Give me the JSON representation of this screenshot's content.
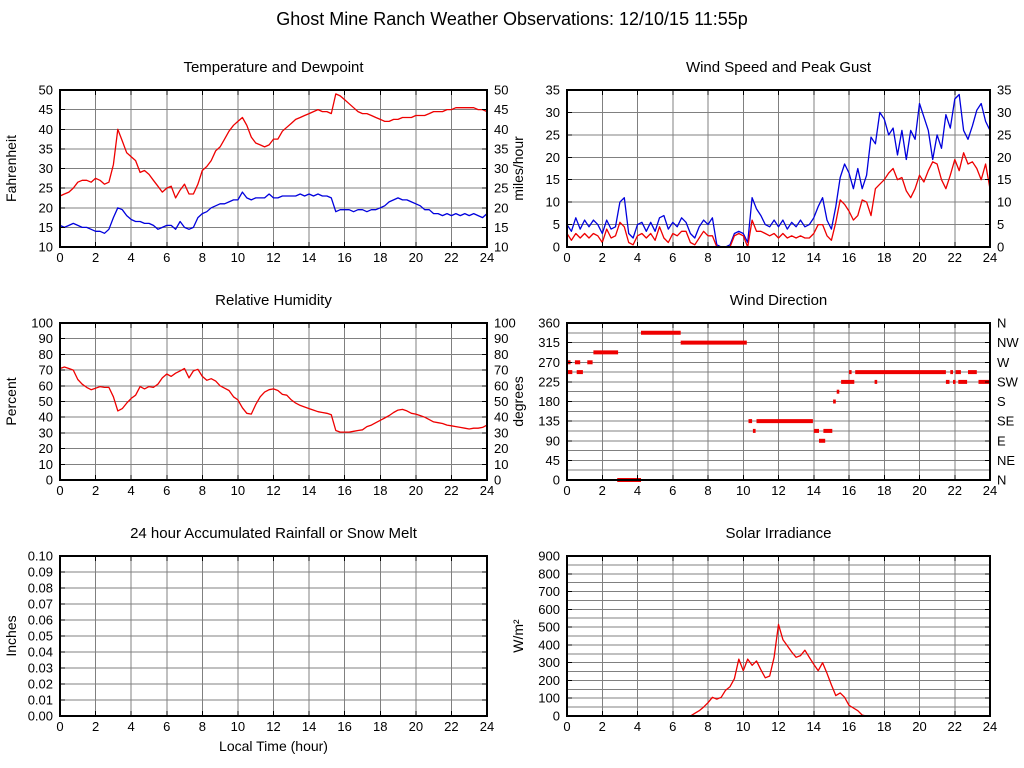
{
  "header": {
    "title": "Ghost Mine Ranch Weather Observations: 12/10/15 11:55p"
  },
  "colors": {
    "series_red": "#ee0000",
    "series_blue": "#0000dd",
    "grid": "#808080",
    "frame": "#000000",
    "text": "#000000",
    "background": "#ffffff"
  },
  "chart_data": [
    {
      "id": "temperature-dewpoint",
      "type": "line",
      "title": "Temperature and Dewpoint",
      "ylabel": "Fahrenheit",
      "xlabel": "",
      "x_range": [
        0,
        24
      ],
      "x_label_step": 2,
      "y_range": [
        10,
        50
      ],
      "y_label_step": 5,
      "y_grid_step": 5,
      "y_tick_decimals": 0,
      "right_labels": "mirror",
      "grid": true,
      "legend": "none",
      "series": [
        {
          "name": "temperature",
          "color_key": "series_red",
          "x_start": 0,
          "x_step": 0.25,
          "values": [
            23,
            23.5,
            24,
            25,
            26.5,
            27,
            27,
            26.5,
            27.5,
            27,
            26,
            26.5,
            31,
            40,
            37,
            34,
            33,
            32,
            29,
            29.5,
            28.5,
            27,
            25.5,
            24,
            25,
            25.5,
            22.5,
            24.5,
            26,
            23.5,
            23.5,
            26,
            29.5,
            30.5,
            32,
            34.5,
            35.5,
            37.5,
            39.5,
            41,
            42,
            43,
            41,
            38,
            36.5,
            36,
            35.5,
            36,
            37.5,
            37.5,
            39.5,
            40.5,
            41.5,
            42.5,
            43,
            43.5,
            44,
            44.5,
            45,
            44.5,
            44.5,
            44,
            49,
            48.5,
            47.5,
            46.5,
            45.5,
            44.5,
            44,
            44,
            43.5,
            43,
            42.5,
            42,
            42,
            42.5,
            42.5,
            43,
            43,
            43,
            43.5,
            43.5,
            43.5,
            44,
            44.5,
            44.5,
            44.5,
            45,
            45,
            45.5,
            45.5,
            45.5,
            45.5,
            45.5,
            45,
            45,
            44.5
          ]
        },
        {
          "name": "dewpoint",
          "color_key": "series_blue",
          "x_start": 0,
          "x_step": 0.25,
          "values": [
            15.5,
            15,
            15.5,
            16,
            15.5,
            15,
            15,
            14.5,
            14,
            14,
            13.5,
            14.5,
            17.5,
            20,
            19.5,
            18,
            17,
            16.5,
            16.5,
            16,
            16,
            15.5,
            14.5,
            15,
            15.5,
            15.5,
            14.5,
            16.5,
            15,
            14.5,
            15,
            17.5,
            18.5,
            19,
            20,
            20.5,
            21,
            21,
            21.5,
            22,
            22,
            24,
            22.5,
            22,
            22.5,
            22.5,
            22.5,
            23.5,
            22.5,
            22.5,
            23,
            23,
            23,
            23,
            23.5,
            23,
            23.5,
            23,
            23.5,
            23,
            23,
            22.5,
            19,
            19.5,
            19.5,
            19.5,
            19,
            19.5,
            19.5,
            19,
            19.5,
            19.5,
            20,
            20.5,
            21.5,
            22,
            22.5,
            22,
            22,
            21.5,
            21,
            20.5,
            19.5,
            19.5,
            18.5,
            18.5,
            18,
            18.5,
            18,
            18.5,
            18,
            18.5,
            18,
            18.5,
            18,
            17.5,
            18.5
          ]
        }
      ]
    },
    {
      "id": "wind-speed-gust",
      "type": "line",
      "title": "Wind Speed and Peak Gust",
      "ylabel": "miles/hour",
      "xlabel": "",
      "x_range": [
        0,
        24
      ],
      "x_label_step": 2,
      "y_range": [
        0,
        35
      ],
      "y_label_step": 5,
      "y_grid_step": 5,
      "y_tick_decimals": 0,
      "right_labels": "mirror",
      "grid": true,
      "legend": "none",
      "series": [
        {
          "name": "peak-gust",
          "color_key": "series_blue",
          "x_start": 0,
          "x_step": 0.25,
          "values": [
            5,
            3.5,
            6.5,
            4,
            6,
            4.5,
            6,
            5,
            3,
            6,
            4,
            4.5,
            10,
            11,
            3,
            2,
            5,
            5.5,
            3.5,
            5.5,
            3.5,
            6.5,
            7,
            4,
            5.5,
            4.5,
            6.5,
            5.5,
            3,
            2,
            4.5,
            6,
            5,
            6.5,
            0.5,
            0,
            0,
            0.5,
            3,
            3.5,
            3,
            1,
            11,
            8.5,
            7,
            5,
            4.5,
            6,
            4.5,
            6,
            4,
            5.5,
            4.5,
            6,
            4.5,
            5,
            6.5,
            9,
            11,
            6,
            4,
            9,
            15.5,
            18.5,
            16.5,
            13,
            17.5,
            13,
            16,
            24.5,
            23,
            30,
            28.5,
            25,
            26.5,
            20.5,
            26,
            19.5,
            26,
            24,
            32,
            29,
            26,
            19.5,
            25,
            22,
            29.5,
            26.5,
            33,
            34,
            26,
            24,
            27,
            30.5,
            32,
            28,
            26
          ]
        },
        {
          "name": "wind-speed",
          "color_key": "series_red",
          "x_start": 0,
          "x_step": 0.25,
          "values": [
            3,
            1.5,
            3,
            2,
            3,
            2,
            3,
            2.5,
            1,
            4,
            2,
            2.5,
            5.5,
            4.5,
            1,
            0.5,
            2.5,
            3,
            2,
            3,
            1.5,
            4.5,
            2,
            1,
            3,
            2.5,
            3.5,
            3.5,
            1,
            0.5,
            2,
            3.5,
            2.5,
            2.5,
            0,
            0,
            0,
            0,
            2.5,
            3,
            2.5,
            0,
            6,
            3.5,
            3.5,
            3,
            2.5,
            3,
            2,
            3,
            2,
            2.5,
            2,
            2.5,
            2,
            2,
            3,
            5,
            5,
            2.5,
            1.5,
            5.5,
            10.5,
            9.5,
            8,
            6,
            7,
            10.5,
            10,
            7,
            13,
            14,
            15,
            16.5,
            17.5,
            15,
            15.5,
            12.5,
            11,
            13,
            16,
            14.5,
            17,
            19,
            18.5,
            15,
            13,
            16,
            19.5,
            17,
            21,
            18.5,
            19,
            17.5,
            15,
            18.5,
            13
          ]
        }
      ]
    },
    {
      "id": "relative-humidity",
      "type": "line",
      "title": "Relative Humidity",
      "ylabel": "Percent",
      "xlabel": "",
      "x_range": [
        0,
        24
      ],
      "x_label_step": 2,
      "y_range": [
        0,
        100
      ],
      "y_label_step": 10,
      "y_grid_step": 10,
      "y_tick_decimals": 0,
      "right_labels": "mirror",
      "grid": true,
      "legend": "none",
      "series": [
        {
          "name": "relative-humidity",
          "color_key": "series_red",
          "x_start": 0,
          "x_step": 0.25,
          "values": [
            71,
            72,
            71,
            70,
            64,
            61,
            59,
            57.5,
            58.5,
            59.5,
            59,
            59,
            53,
            44,
            45.5,
            49,
            52,
            54,
            59.5,
            58,
            59.5,
            59,
            61,
            65,
            67.5,
            66,
            68,
            69.5,
            71,
            65,
            69.5,
            70.5,
            66,
            63.5,
            64.5,
            63,
            60,
            58.5,
            57,
            53,
            51,
            46,
            42.5,
            42,
            48,
            53,
            56,
            57.5,
            58,
            57,
            54.5,
            54,
            51,
            49,
            47.5,
            46.5,
            45.5,
            44.5,
            43.5,
            43,
            42.5,
            41.5,
            31.5,
            30.5,
            30.5,
            30.5,
            31,
            31.5,
            32,
            34,
            35,
            36.5,
            38,
            39.5,
            41,
            43,
            44.5,
            45,
            44,
            42.5,
            42,
            41,
            40,
            38.5,
            37,
            36.5,
            36,
            35,
            34.5,
            34,
            33.5,
            33,
            32.5,
            33,
            33,
            33.5,
            35
          ]
        }
      ]
    },
    {
      "id": "wind-direction",
      "type": "segments",
      "title": "Wind Direction",
      "ylabel": "degrees",
      "xlabel": "",
      "x_range": [
        0,
        24
      ],
      "x_label_step": 2,
      "y_range": [
        0,
        360
      ],
      "y_label_step": 45,
      "y_grid_step": 22.5,
      "y_tick_decimals": 0,
      "right_labels": "compass",
      "compass_labels_top_to_bottom": [
        "N",
        "NW",
        "W",
        "SW",
        "S",
        "SE",
        "E",
        "NE",
        "N"
      ],
      "grid": true,
      "legend": "none",
      "segments_color_key": "series_red",
      "segments": [
        {
          "deg": 270,
          "from": 0.0,
          "to": 0.2
        },
        {
          "deg": 247.5,
          "from": 0.05,
          "to": 0.3
        },
        {
          "deg": 270,
          "from": 0.45,
          "to": 0.75
        },
        {
          "deg": 247.5,
          "from": 0.55,
          "to": 0.9
        },
        {
          "deg": 270,
          "from": 1.15,
          "to": 1.45
        },
        {
          "deg": 292.5,
          "from": 1.5,
          "to": 2.9
        },
        {
          "deg": 0,
          "from": 2.85,
          "to": 4.2
        },
        {
          "deg": 337.5,
          "from": 4.2,
          "to": 6.45
        },
        {
          "deg": 315,
          "from": 6.45,
          "to": 10.2
        },
        {
          "deg": 135,
          "from": 10.3,
          "to": 10.5
        },
        {
          "deg": 112.5,
          "from": 10.55,
          "to": 10.7
        },
        {
          "deg": 135,
          "from": 10.75,
          "to": 13.95
        },
        {
          "deg": 112.5,
          "from": 14.0,
          "to": 14.3
        },
        {
          "deg": 90,
          "from": 14.3,
          "to": 14.65
        },
        {
          "deg": 112.5,
          "from": 14.55,
          "to": 15.05
        },
        {
          "deg": 180,
          "from": 15.1,
          "to": 15.25
        },
        {
          "deg": 202.5,
          "from": 15.3,
          "to": 15.45
        },
        {
          "deg": 225,
          "from": 15.55,
          "to": 16.3
        },
        {
          "deg": 247.5,
          "from": 16.0,
          "to": 16.15
        },
        {
          "deg": 247.5,
          "from": 16.35,
          "to": 21.5
        },
        {
          "deg": 225,
          "from": 17.45,
          "to": 17.6
        },
        {
          "deg": 225,
          "from": 21.5,
          "to": 21.7
        },
        {
          "deg": 247.5,
          "from": 21.75,
          "to": 21.9
        },
        {
          "deg": 225,
          "from": 21.9,
          "to": 22.05
        },
        {
          "deg": 247.5,
          "from": 22.05,
          "to": 22.35
        },
        {
          "deg": 225,
          "from": 22.2,
          "to": 22.7
        },
        {
          "deg": 247.5,
          "from": 22.75,
          "to": 23.25
        },
        {
          "deg": 225,
          "from": 23.35,
          "to": 24.0
        }
      ]
    },
    {
      "id": "rainfall",
      "type": "line",
      "title": "24 hour Accumulated Rainfall or Snow Melt",
      "ylabel": "Inches",
      "xlabel": "Local Time (hour)",
      "x_range": [
        0,
        24
      ],
      "x_label_step": 2,
      "y_range": [
        0,
        0.1
      ],
      "y_label_step": 0.01,
      "y_grid_step": 0.01,
      "y_tick_decimals": 2,
      "right_labels": "none",
      "grid": true,
      "legend": "none",
      "series": [
        {
          "name": "rainfall",
          "color_key": "series_red",
          "x_start": 0,
          "x_step": 24,
          "values": [
            0,
            0
          ]
        }
      ]
    },
    {
      "id": "solar-irradiance",
      "type": "line",
      "title": "Solar Irradiance",
      "ylabel": "W/m²",
      "xlabel": "",
      "x_range": [
        0,
        24
      ],
      "x_label_step": 2,
      "y_range": [
        0,
        900
      ],
      "y_label_step": 100,
      "y_grid_step": 50,
      "y_tick_decimals": 0,
      "right_labels": "none",
      "grid": true,
      "legend": "none",
      "series": [
        {
          "name": "solar-irradiance",
          "color_key": "series_red",
          "x_start": 0,
          "x_step": 0.25,
          "values": [
            0,
            0,
            0,
            0,
            0,
            0,
            0,
            0,
            0,
            0,
            0,
            0,
            0,
            0,
            0,
            0,
            0,
            0,
            0,
            0,
            0,
            0,
            0,
            0,
            0,
            0,
            0,
            0,
            0,
            15,
            30,
            50,
            75,
            105,
            95,
            105,
            145,
            165,
            210,
            320,
            255,
            320,
            285,
            310,
            260,
            215,
            225,
            330,
            515,
            430,
            395,
            360,
            330,
            340,
            370,
            330,
            290,
            255,
            300,
            240,
            175,
            115,
            130,
            105,
            60,
            45,
            30,
            5,
            0,
            0,
            0,
            0,
            0,
            0,
            0,
            0,
            0,
            0,
            0,
            0,
            0,
            0,
            0,
            0,
            0,
            0,
            0,
            0,
            0,
            0,
            0,
            0,
            0,
            0,
            0,
            0,
            0
          ]
        }
      ]
    }
  ]
}
